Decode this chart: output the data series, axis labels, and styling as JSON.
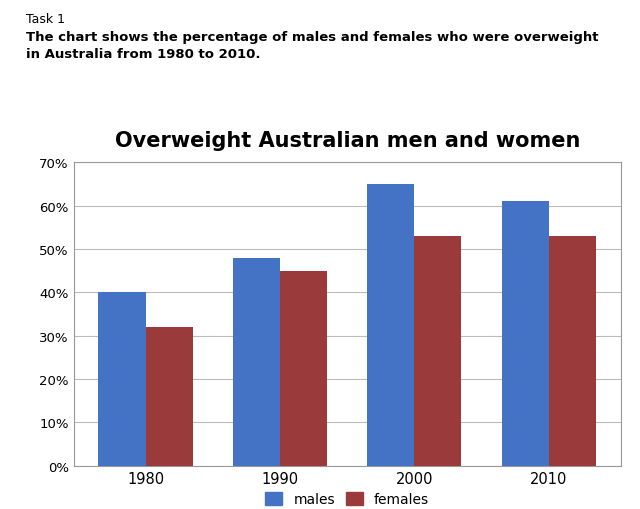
{
  "title": "Overweight Australian men and women",
  "task_label": "Task 1",
  "description_line1": "The chart shows the percentage of males and females who were overweight",
  "description_line2": "in Australia from 1980 to 2010.",
  "years": [
    "1980",
    "1990",
    "2000",
    "2010"
  ],
  "males": [
    0.4,
    0.48,
    0.65,
    0.61
  ],
  "females": [
    0.32,
    0.45,
    0.53,
    0.53
  ],
  "male_color": "#4472C4",
  "female_color": "#9B3A3A",
  "ylim": [
    0,
    0.7
  ],
  "yticks": [
    0.0,
    0.1,
    0.2,
    0.3,
    0.4,
    0.5,
    0.6,
    0.7
  ],
  "ytick_labels": [
    "0%",
    "10%",
    "20%",
    "30%",
    "40%",
    "50%",
    "60%",
    "70%"
  ],
  "bar_width": 0.35,
  "legend_labels": [
    "males",
    "females"
  ],
  "title_fontsize": 15,
  "title_fontweight": "bold",
  "background_color": "#FFFFFF",
  "chart_bg_color": "#FFFFFF",
  "grid_color": "#BBBBBB",
  "border_color": "#999999"
}
